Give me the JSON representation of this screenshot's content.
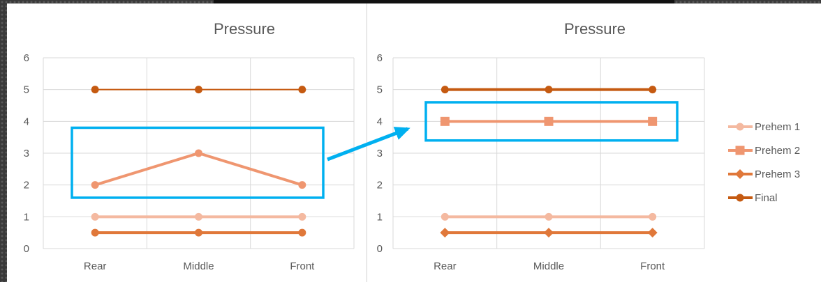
{
  "colors": {
    "prehem1": "#f4b9a0",
    "prehem2": "#ef9670",
    "prehem3": "#e0783a",
    "final": "#c55a11",
    "highlight": "#00b0f0",
    "grid": "#d9d9d9",
    "text": "#595959"
  },
  "chart_data": [
    {
      "type": "line",
      "title": "Pressure",
      "xlabel": "",
      "ylabel": "",
      "categories": [
        "Rear",
        "Middle",
        "Front"
      ],
      "ylim": [
        0,
        6
      ],
      "yticks": [
        0,
        1,
        2,
        3,
        4,
        5,
        6
      ],
      "grid": true,
      "series": [
        {
          "key": "prehem1",
          "values": [
            1,
            1,
            1
          ],
          "marker": "circle"
        },
        {
          "key": "prehem2",
          "values": [
            2,
            3,
            2
          ],
          "marker": "circle"
        },
        {
          "key": "prehem3",
          "values": [
            0.5,
            0.5,
            0.5
          ],
          "marker": "circle"
        },
        {
          "key": "final",
          "values": [
            5,
            5,
            5
          ],
          "marker": "circle"
        }
      ],
      "highlight_y_range": [
        1.6,
        3.8
      ]
    },
    {
      "type": "line",
      "title": "Pressure",
      "xlabel": "",
      "ylabel": "",
      "categories": [
        "Rear",
        "Middle",
        "Front"
      ],
      "ylim": [
        0,
        6
      ],
      "yticks": [
        0,
        1,
        2,
        3,
        4,
        5,
        6
      ],
      "grid": true,
      "legend_position": "right",
      "series": [
        {
          "key": "prehem1",
          "name": "Prehem 1",
          "values": [
            1,
            1,
            1
          ],
          "marker": "circle"
        },
        {
          "key": "prehem2",
          "name": "Prehem 2",
          "values": [
            4,
            4,
            4
          ],
          "marker": "square"
        },
        {
          "key": "prehem3",
          "name": "Prehem 3",
          "values": [
            0.5,
            0.5,
            0.5
          ],
          "marker": "diamond"
        },
        {
          "key": "final",
          "name": "Final",
          "values": [
            5,
            5,
            5
          ],
          "marker": "circle"
        }
      ],
      "highlight_y_range": [
        3.4,
        4.6
      ]
    }
  ]
}
